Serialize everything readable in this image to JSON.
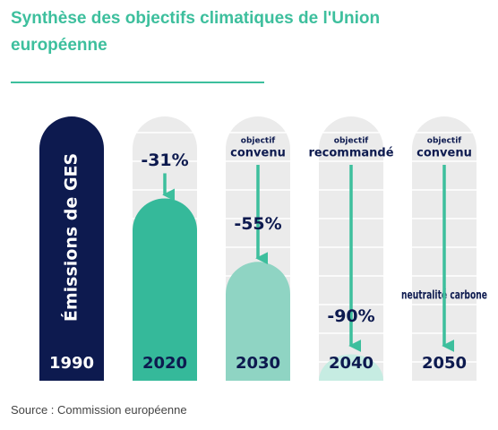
{
  "chart_data": {
    "type": "bar",
    "title": "Synthèse des objectifs climatiques de l'Union européenne",
    "categories": [
      "1990",
      "2020",
      "2030",
      "2040",
      "2050"
    ],
    "values": [
      0,
      -31,
      -55,
      -90,
      -100
    ],
    "value_labels": [
      null,
      "-31%",
      "-55%",
      "-90%",
      null
    ],
    "colors": [
      "#0d1a4f",
      "#35b99a",
      "#8fd4c3",
      "#c6ece2",
      "#dff4ee"
    ],
    "bar_label": "Émissions de GES",
    "targets": [
      null,
      null,
      {
        "heading": "objectif",
        "text": "convenu"
      },
      {
        "heading": "objectif",
        "text": "recommandé"
      },
      {
        "heading": "objectif",
        "text": "convenu",
        "note": "neutralité carbone"
      }
    ],
    "ylim": [
      -100,
      0
    ],
    "source": "Source : Commission européenne"
  }
}
